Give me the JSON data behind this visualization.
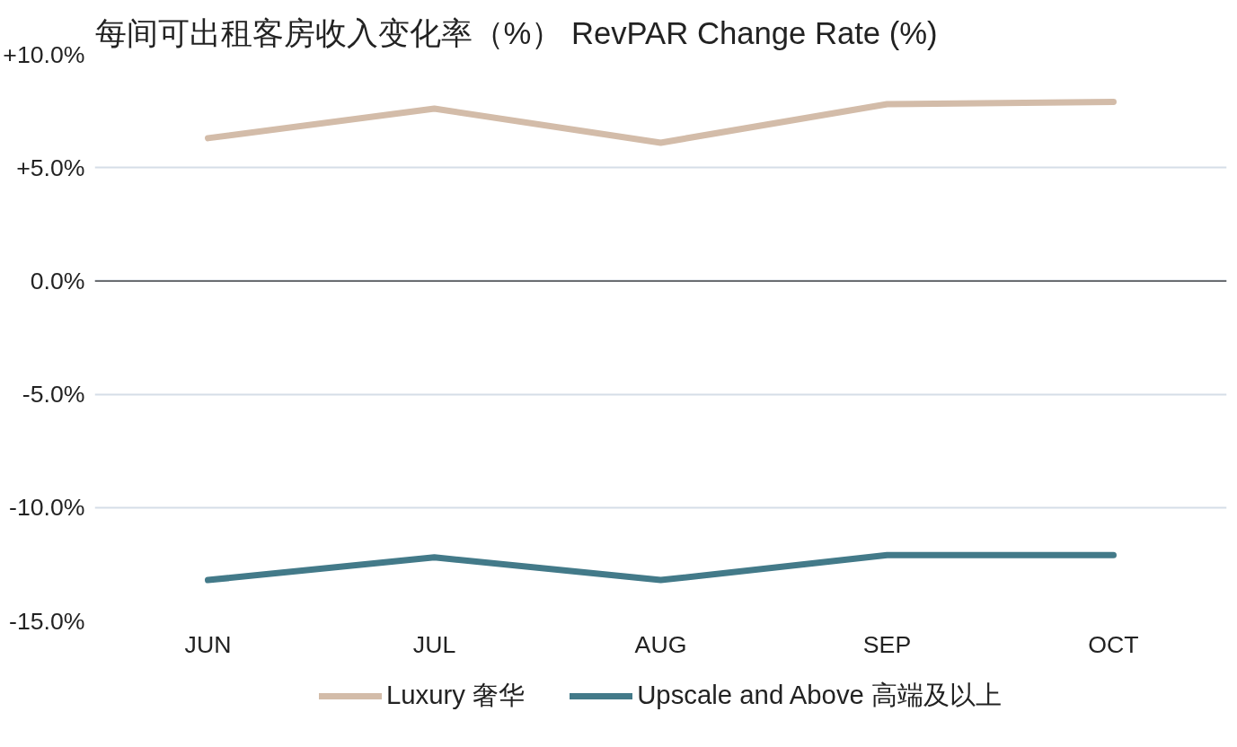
{
  "chart_data": {
    "type": "line",
    "title": "每间可出租客房收入变化率（%）  RevPAR Change Rate (%)",
    "categories": [
      "JUN",
      "JUL",
      "AUG",
      "SEP",
      "OCT"
    ],
    "series": [
      {
        "name": "Luxury 奢华",
        "color": "#d3bca9",
        "values": [
          6.3,
          7.6,
          6.1,
          7.8,
          7.9
        ]
      },
      {
        "name": "Upscale and Above 高端及以上",
        "color": "#437a89",
        "values": [
          -13.2,
          -12.2,
          -13.2,
          -12.1,
          -12.1
        ]
      }
    ],
    "ylim": [
      -15,
      10
    ],
    "yticks": [
      {
        "value": 10,
        "label": "+10.0%"
      },
      {
        "value": 5,
        "label": "+5.0%"
      },
      {
        "value": 0,
        "label": "0.0%"
      },
      {
        "value": -5,
        "label": "-5.0%"
      },
      {
        "value": -10,
        "label": "-10.0%"
      },
      {
        "value": -15,
        "label": "-15.0%"
      }
    ],
    "ref_lines": [
      {
        "axis": "y",
        "value": 0,
        "color": "#6b6e72"
      }
    ],
    "grid": "y",
    "legend": "bottom",
    "marker": "none",
    "line_style": "solid"
  }
}
